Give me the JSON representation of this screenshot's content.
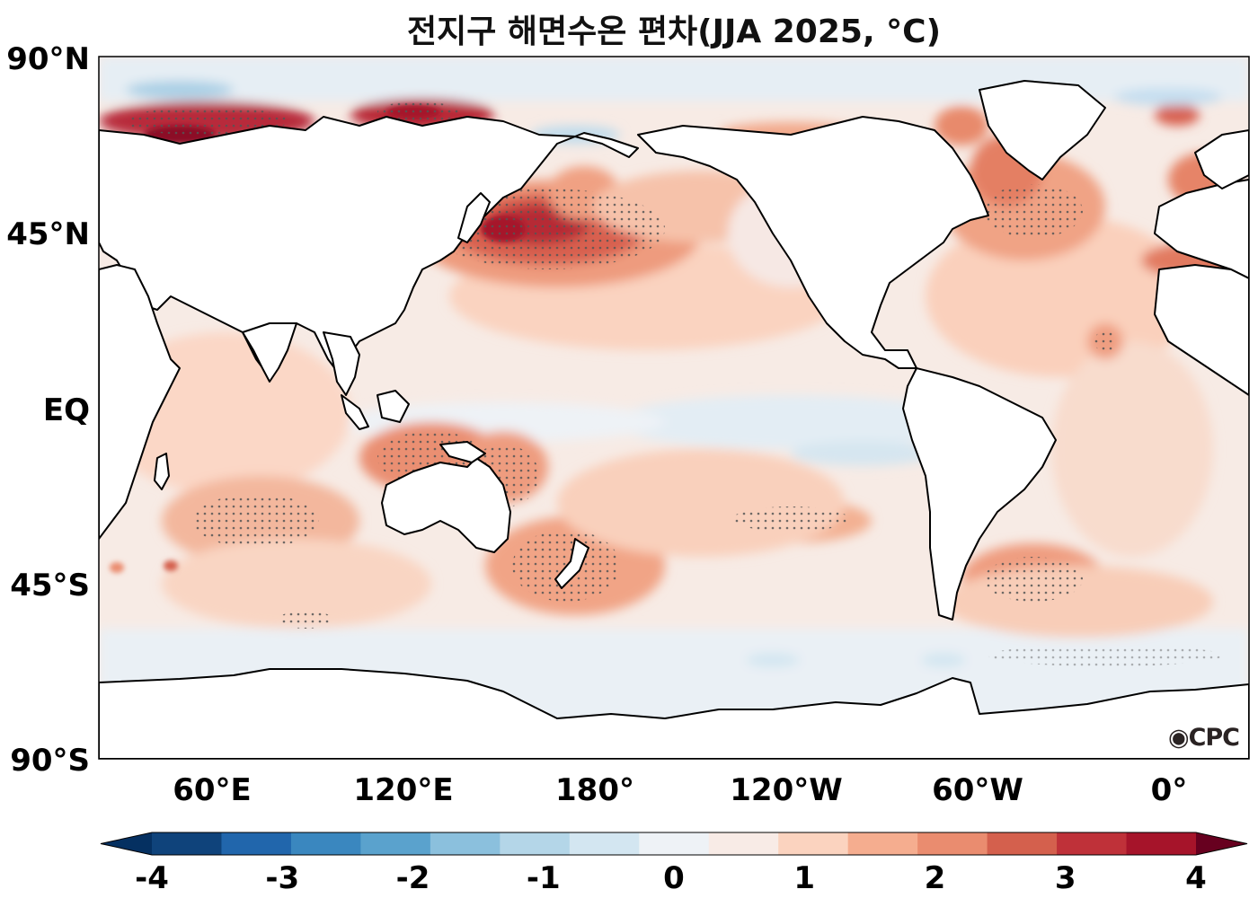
{
  "title": "전지구 해면수온 편차(JJA 2025, °C)",
  "logo_text": "CPC",
  "lat_labels": [
    "90°N",
    "45°N",
    "EQ",
    "45°S",
    "90°S"
  ],
  "lon_labels": [
    "60°E",
    "120°E",
    "180°",
    "120°W",
    "60°W",
    "0°"
  ],
  "colorbar": {
    "tick_labels": [
      "-4",
      "-3",
      "-2",
      "-1",
      "0",
      "1",
      "2",
      "3",
      "4"
    ],
    "levels": [
      -4,
      -3.5,
      -3,
      -2.5,
      -2,
      -1.5,
      -1,
      -0.5,
      0,
      0.5,
      1,
      1.5,
      2,
      2.5,
      3,
      3.5,
      4
    ],
    "colors": [
      "#053061",
      "#0f437b",
      "#2166ac",
      "#3a87bf",
      "#5aa2cd",
      "#8bc0dd",
      "#b4d6e8",
      "#d3e6f1",
      "#eef2f6",
      "#f8ebe6",
      "#fbd3bf",
      "#f5ad8f",
      "#ea8c6f",
      "#d4604d",
      "#bf3139",
      "#a6142a",
      "#67001f"
    ]
  },
  "map_data": {
    "projection": "equirectangular, centered 160°W",
    "lon_range": [
      20,
      380
    ],
    "lat_range": [
      -90,
      90
    ],
    "stippling": "significant areas",
    "anomaly_regions": [
      {
        "region": "Kuroshio Extension / NW Pacific",
        "value_range": [
          2,
          4
        ]
      },
      {
        "region": "Arctic Kara-Laptev seas",
        "value_range": [
          3,
          4
        ]
      },
      {
        "region": "North Atlantic / Labrador",
        "value_range": [
          1.5,
          3
        ]
      },
      {
        "region": "Maritime Continent / N Australia",
        "value_range": [
          1,
          2
        ]
      },
      {
        "region": "Tasman Sea / SW Pacific",
        "value_range": [
          1,
          2
        ]
      },
      {
        "region": "South Indian Ocean",
        "value_range": [
          1,
          2
        ]
      },
      {
        "region": "SW Atlantic",
        "value_range": [
          1,
          2
        ]
      },
      {
        "region": "Eastern Equatorial Pacific",
        "value_range": [
          -0.5,
          0
        ]
      }
    ]
  }
}
